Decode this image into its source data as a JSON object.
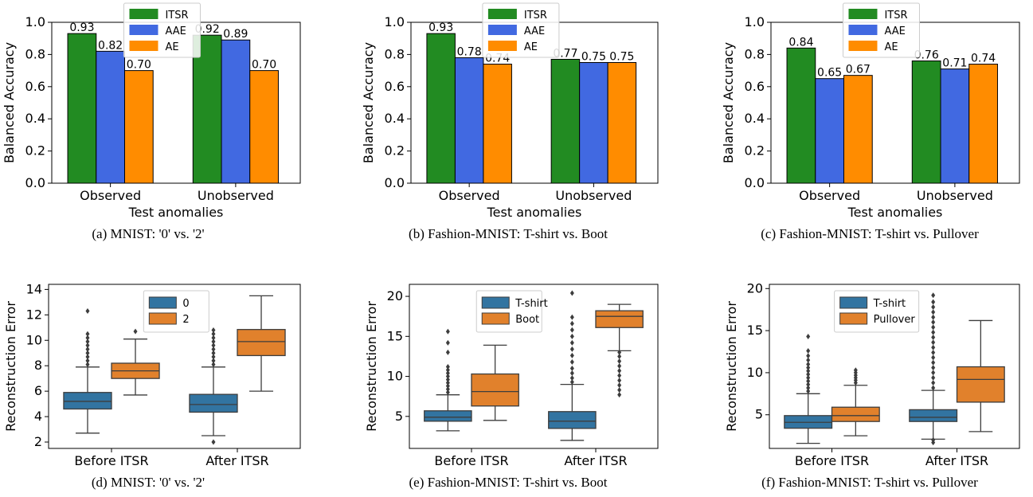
{
  "colors": {
    "ITSR": "#228b22",
    "AAE": "#4169e1",
    "AE": "#ff8c00",
    "box_blue": "#3274a1",
    "box_orange": "#e1812c"
  },
  "chart_data": [
    {
      "type": "bar",
      "caption": "(a) MNIST: '0' vs. '2'",
      "xlabel": "Test anomalies",
      "ylabel": "Balanced Accuracy",
      "ylim": [
        0,
        1.0
      ],
      "yticks": [
        "0.0",
        "0.2",
        "0.4",
        "0.6",
        "0.8",
        "1.0"
      ],
      "categories": [
        "Observed",
        "Unobserved"
      ],
      "legend_position": "top-center",
      "series": [
        {
          "name": "ITSR",
          "values": [
            0.93,
            0.92
          ],
          "labels": [
            "0.93",
            "0.92"
          ]
        },
        {
          "name": "AAE",
          "values": [
            0.82,
            0.89
          ],
          "labels": [
            "0.82",
            "0.89"
          ]
        },
        {
          "name": "AE",
          "values": [
            0.7,
            0.7
          ],
          "labels": [
            "0.70",
            "0.70"
          ]
        }
      ]
    },
    {
      "type": "bar",
      "caption": "(b) Fashion-MNIST: T-shirt vs. Boot",
      "xlabel": "Test anomalies",
      "ylabel": "Balanced Accuracy",
      "ylim": [
        0,
        1.0
      ],
      "yticks": [
        "0.0",
        "0.2",
        "0.4",
        "0.6",
        "0.8",
        "1.0"
      ],
      "categories": [
        "Observed",
        "Unobserved"
      ],
      "legend_position": "top-center",
      "series": [
        {
          "name": "ITSR",
          "values": [
            0.93,
            0.77
          ],
          "labels": [
            "0.93",
            "0.77"
          ]
        },
        {
          "name": "AAE",
          "values": [
            0.78,
            0.75
          ],
          "labels": [
            "0.78",
            "0.75"
          ]
        },
        {
          "name": "AE",
          "values": [
            0.74,
            0.75
          ],
          "labels": [
            "0.74",
            "0.75"
          ]
        }
      ]
    },
    {
      "type": "bar",
      "caption": "(c) Fashion-MNIST: T-shirt vs. Pullover",
      "xlabel": "Test anomalies",
      "ylabel": "Balanced Accuracy",
      "ylim": [
        0,
        1.0
      ],
      "yticks": [
        "0.0",
        "0.2",
        "0.4",
        "0.6",
        "0.8",
        "1.0"
      ],
      "categories": [
        "Observed",
        "Unobserved"
      ],
      "legend_position": "top-center",
      "series": [
        {
          "name": "ITSR",
          "values": [
            0.84,
            0.76
          ],
          "labels": [
            "0.84",
            "0.76"
          ]
        },
        {
          "name": "AAE",
          "values": [
            0.65,
            0.71
          ],
          "labels": [
            "0.65",
            "0.71"
          ]
        },
        {
          "name": "AE",
          "values": [
            0.67,
            0.74
          ],
          "labels": [
            "0.67",
            "0.74"
          ]
        }
      ]
    },
    {
      "type": "box",
      "caption": "(d) MNIST: '0' vs. '2'",
      "xlabel": "",
      "ylabel": "Reconstruction Error",
      "ylim": [
        1.5,
        14.4
      ],
      "ytick_values": [
        2,
        4,
        6,
        8,
        10,
        12,
        14
      ],
      "categories": [
        "Before ITSR",
        "After ITSR"
      ],
      "legend_position": "upper-center",
      "series": [
        {
          "name": "0",
          "boxes": [
            {
              "min": 2.7,
              "q1": 4.6,
              "median": 5.2,
              "q3": 5.9,
              "max": 7.9,
              "outliers": [
                8.1,
                8.4,
                8.7,
                9.0,
                9.3,
                9.6,
                9.9,
                10.2,
                10.5,
                12.3
              ]
            },
            {
              "min": 2.5,
              "q1": 4.35,
              "median": 4.95,
              "q3": 5.75,
              "max": 7.9,
              "outliers": [
                2.0,
                8.1,
                8.4,
                8.7,
                9.0,
                9.3,
                9.6,
                9.9,
                10.2,
                10.5,
                10.8
              ]
            }
          ]
        },
        {
          "name": "2",
          "boxes": [
            {
              "min": 5.7,
              "q1": 7.0,
              "median": 7.6,
              "q3": 8.2,
              "max": 10.1,
              "outliers": [
                10.7
              ]
            },
            {
              "min": 6.0,
              "q1": 8.8,
              "median": 9.9,
              "q3": 10.85,
              "max": 13.5,
              "outliers": []
            }
          ]
        }
      ]
    },
    {
      "type": "box",
      "caption": "(e) Fashion-MNIST: T-shirt vs. Boot",
      "xlabel": "",
      "ylabel": "Reconstruction Error",
      "ylim": [
        1.0,
        21.5
      ],
      "ytick_values": [
        5,
        10,
        15,
        20
      ],
      "categories": [
        "Before ITSR",
        "After ITSR"
      ],
      "legend_position": "upper-center",
      "series": [
        {
          "name": "T-shirt",
          "boxes": [
            {
              "min": 3.2,
              "q1": 4.4,
              "median": 4.9,
              "q3": 5.7,
              "max": 7.7,
              "outliers": [
                8.0,
                8.4,
                8.8,
                9.2,
                9.6,
                10.0,
                10.4,
                10.8,
                11.2,
                13.0,
                14.2,
                15.6
              ]
            },
            {
              "min": 2.0,
              "q1": 3.5,
              "median": 4.4,
              "q3": 5.6,
              "max": 9.0,
              "outliers": [
                9.3,
                9.8,
                10.4,
                11.0,
                11.8,
                12.6,
                13.4,
                14.2,
                15.0,
                15.8,
                16.6,
                17.4,
                20.4
              ]
            }
          ]
        },
        {
          "name": "Boot",
          "boxes": [
            {
              "min": 4.5,
              "q1": 6.3,
              "median": 8.1,
              "q3": 10.3,
              "max": 13.9,
              "outliers": []
            },
            {
              "min": 13.2,
              "q1": 16.1,
              "median": 17.5,
              "q3": 18.2,
              "max": 19.0,
              "outliers": [
                7.7,
                8.3,
                8.9,
                9.5,
                10.1,
                10.7,
                11.3,
                11.9,
                12.5,
                13.0
              ]
            }
          ]
        }
      ]
    },
    {
      "type": "box",
      "caption": "(f) Fashion-MNIST: T-shirt vs. Pullover",
      "xlabel": "",
      "ylabel": "Reconstruction Error",
      "ylim": [
        1.0,
        20.5
      ],
      "ytick_values": [
        5,
        10,
        15,
        20
      ],
      "categories": [
        "Before ITSR",
        "After ITSR"
      ],
      "legend_position": "upper-left",
      "series": [
        {
          "name": "T-shirt",
          "boxes": [
            {
              "min": 1.6,
              "q1": 3.4,
              "median": 4.1,
              "q3": 4.9,
              "max": 7.5,
              "outliers": [
                7.8,
                8.2,
                8.6,
                9.0,
                9.4,
                9.8,
                10.2,
                10.6,
                11.0,
                11.5,
                12.0,
                12.6,
                14.3
              ]
            },
            {
              "min": 2.1,
              "q1": 4.2,
              "median": 4.7,
              "q3": 5.6,
              "max": 7.9,
              "outliers": [
                1.7,
                2.0,
                8.2,
                8.8,
                9.4,
                10.0,
                10.6,
                11.2,
                11.8,
                12.4,
                13.0,
                13.6,
                14.2,
                14.8,
                15.4,
                16.0,
                16.6,
                17.2,
                17.8,
                18.4,
                19.2
              ]
            }
          ]
        },
        {
          "name": "Pullover",
          "boxes": [
            {
              "min": 2.5,
              "q1": 4.2,
              "median": 4.9,
              "q3": 5.9,
              "max": 8.5,
              "outliers": [
                8.8,
                9.1,
                9.4,
                9.7,
                10.0,
                10.3
              ]
            },
            {
              "min": 3.0,
              "q1": 6.5,
              "median": 9.2,
              "q3": 10.7,
              "max": 16.2,
              "outliers": []
            }
          ]
        }
      ]
    }
  ]
}
